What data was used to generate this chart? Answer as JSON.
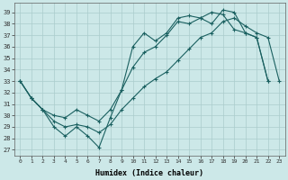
{
  "xlabel": "Humidex (Indice chaleur)",
  "xlim": [
    -0.5,
    23.5
  ],
  "ylim": [
    26.5,
    39.8
  ],
  "yticks": [
    27,
    28,
    29,
    30,
    31,
    32,
    33,
    34,
    35,
    36,
    37,
    38,
    39
  ],
  "xticks": [
    0,
    1,
    2,
    3,
    4,
    5,
    6,
    7,
    8,
    9,
    10,
    11,
    12,
    13,
    14,
    15,
    16,
    17,
    18,
    19,
    20,
    21,
    22,
    23
  ],
  "bg_color": "#cce8e8",
  "grid_color": "#aacccc",
  "line_color": "#1a6060",
  "line1": [
    33.0,
    31.5,
    30.5,
    29.0,
    28.2,
    29.0,
    28.2,
    27.2,
    29.8,
    32.2,
    36.0,
    37.2,
    36.5,
    37.2,
    38.5,
    38.7,
    38.5,
    38.0,
    39.2,
    39.0,
    37.2,
    36.8,
    33.0,
    null
  ],
  "line2": [
    33.0,
    31.5,
    30.5,
    30.0,
    29.8,
    30.5,
    30.0,
    29.5,
    30.5,
    32.2,
    34.2,
    35.5,
    36.0,
    37.0,
    38.2,
    38.0,
    38.5,
    39.0,
    38.8,
    37.5,
    37.2,
    36.8,
    33.0,
    null
  ],
  "line3": [
    33.0,
    31.5,
    30.5,
    29.5,
    29.0,
    29.2,
    29.0,
    28.5,
    29.2,
    30.5,
    31.5,
    32.5,
    33.2,
    33.8,
    34.8,
    35.8,
    36.8,
    37.2,
    38.2,
    38.5,
    37.8,
    37.2,
    36.8,
    33.0
  ]
}
